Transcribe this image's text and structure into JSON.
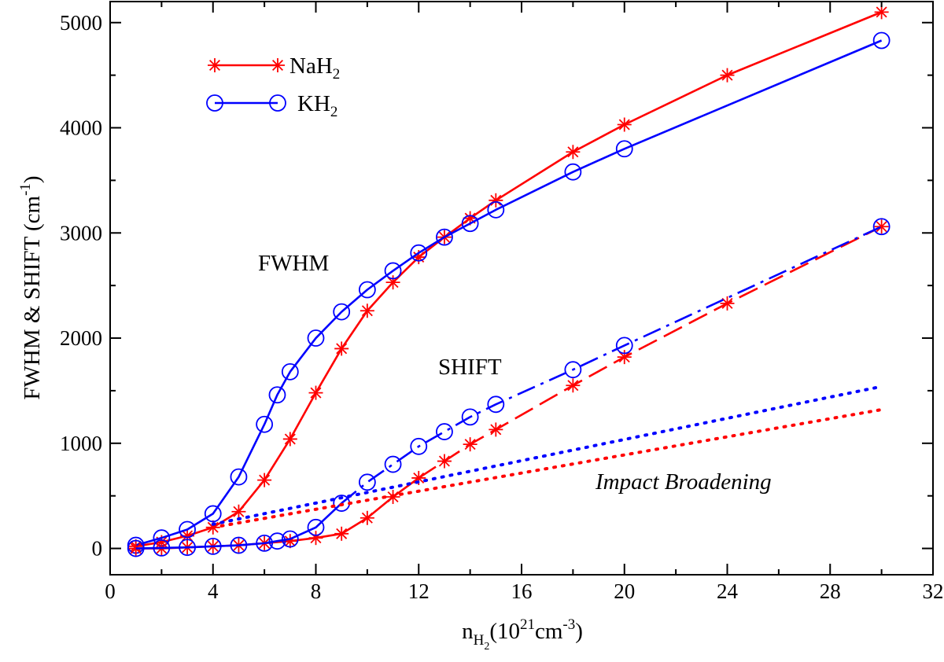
{
  "chart_data": {
    "type": "line",
    "xlabel": {
      "main": "n",
      "sub": "H",
      "subsub": "2",
      "paren_open": "(10",
      "sup1": "21",
      "mid": "cm",
      "sup2": "-3",
      "paren_close": ")"
    },
    "ylabel": {
      "main": "FWHM & SHIFT  (cm",
      "sup": "-1",
      "close": ")"
    },
    "xlim": [
      0,
      32
    ],
    "ylim": [
      -250,
      5200
    ],
    "xticks": [
      0,
      4,
      8,
      12,
      16,
      20,
      24,
      28,
      32
    ],
    "yticks": [
      0,
      1000,
      2000,
      3000,
      4000,
      5000
    ],
    "grid": false,
    "legend": {
      "placement": "top-left",
      "entries": [
        {
          "main": "NaH",
          "sub": "2",
          "color": "#ff0000",
          "marker": "asterisk"
        },
        {
          "main": "KH",
          "sub": "2",
          "color": "#0000ff",
          "marker": "circle"
        }
      ]
    },
    "annotations": {
      "fwhm": "FWHM",
      "shift": "SHIFT",
      "impact": "Impact Broadening"
    },
    "series": [
      {
        "group": "FWHM",
        "species": "NaH2",
        "color": "#ff0000",
        "marker": "asterisk",
        "line": "solid",
        "x": [
          1,
          2,
          3,
          4,
          5,
          6,
          7,
          8,
          9,
          10,
          11,
          12,
          13,
          14,
          15,
          18,
          20,
          24,
          30
        ],
        "y": [
          20,
          60,
          120,
          200,
          350,
          650,
          1040,
          1480,
          1900,
          2260,
          2530,
          2770,
          2960,
          3140,
          3310,
          3770,
          4030,
          4500,
          5100
        ]
      },
      {
        "group": "FWHM",
        "species": "KH2",
        "color": "#0000ff",
        "marker": "circle",
        "line": "solid",
        "x": [
          1,
          2,
          3,
          4,
          5,
          6,
          6.5,
          7,
          8,
          9,
          10,
          11,
          12,
          13,
          14,
          15,
          18,
          20,
          30
        ],
        "y": [
          30,
          100,
          180,
          330,
          680,
          1180,
          1460,
          1680,
          2000,
          2250,
          2460,
          2640,
          2810,
          2960,
          3090,
          3220,
          3580,
          3800,
          4830
        ]
      },
      {
        "group": "SHIFT",
        "species": "NaH2",
        "color": "#ff0000",
        "marker": "asterisk",
        "line": "solid-then-dashed",
        "x": [
          1,
          2,
          3,
          4,
          5,
          6,
          7,
          8,
          9,
          10,
          11,
          12,
          13,
          14,
          15,
          18,
          20,
          24,
          30
        ],
        "y": [
          0,
          0,
          10,
          20,
          30,
          50,
          70,
          100,
          140,
          290,
          490,
          670,
          830,
          990,
          1130,
          1550,
          1820,
          2330,
          3060
        ]
      },
      {
        "group": "SHIFT",
        "species": "KH2",
        "color": "#0000ff",
        "marker": "circle",
        "line": "solid-then-dashdot",
        "x": [
          1,
          2,
          3,
          4,
          5,
          6,
          6.5,
          7,
          8,
          9,
          10,
          11,
          12,
          13,
          14,
          15,
          18,
          20,
          30
        ],
        "y": [
          0,
          5,
          10,
          20,
          30,
          50,
          70,
          90,
          200,
          430,
          630,
          800,
          970,
          1110,
          1250,
          1370,
          1700,
          1930,
          3060
        ]
      },
      {
        "group": "Impact Broadening",
        "species": "NaH2",
        "color": "#ff0000",
        "marker": "none",
        "line": "dotted",
        "x": [
          4,
          30
        ],
        "y": [
          200,
          1320
        ]
      },
      {
        "group": "Impact Broadening",
        "species": "KH2",
        "color": "#0000ff",
        "marker": "none",
        "line": "dotted",
        "x": [
          4,
          30
        ],
        "y": [
          230,
          1540
        ]
      }
    ]
  }
}
